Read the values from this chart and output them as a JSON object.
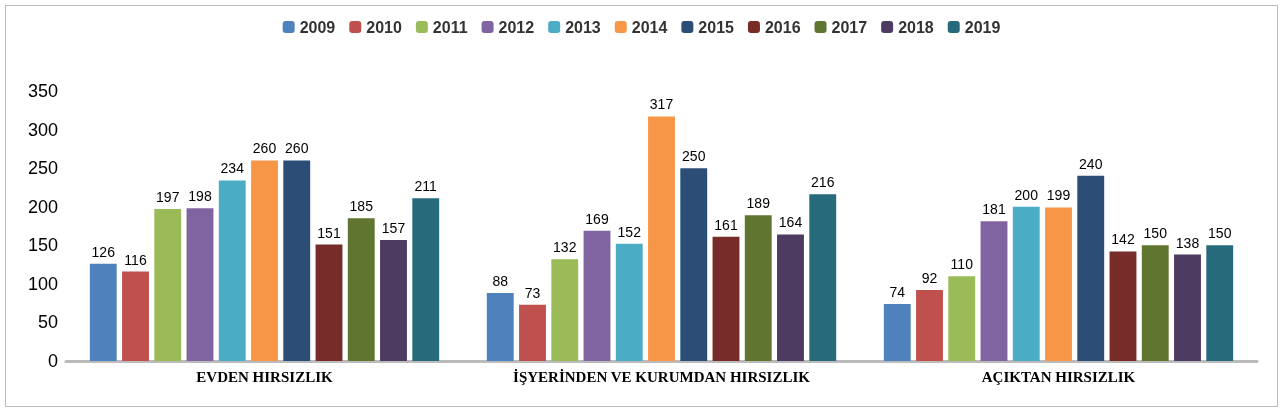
{
  "chart_data": {
    "type": "bar",
    "categories": [
      "EVDEN HIRSIZLIK",
      "İŞYERİNDEN VE KURUMDAN HIRSIZLIK",
      "AÇIKTAN HIRSIZLIK"
    ],
    "series": [
      {
        "name": "2009",
        "color": "#4f81bd",
        "values": [
          126,
          88,
          74
        ]
      },
      {
        "name": "2010",
        "color": "#c0504d",
        "values": [
          116,
          73,
          92
        ]
      },
      {
        "name": "2011",
        "color": "#9bbb59",
        "values": [
          197,
          132,
          110
        ]
      },
      {
        "name": "2012",
        "color": "#8064a2",
        "values": [
          198,
          169,
          181
        ]
      },
      {
        "name": "2013",
        "color": "#4bacc6",
        "values": [
          234,
          152,
          200
        ]
      },
      {
        "name": "2014",
        "color": "#f79646",
        "values": [
          260,
          317,
          199
        ]
      },
      {
        "name": "2015",
        "color": "#2c4d75",
        "values": [
          260,
          250,
          240
        ]
      },
      {
        "name": "2016",
        "color": "#772c2a",
        "values": [
          151,
          161,
          142
        ]
      },
      {
        "name": "2017",
        "color": "#5f7530",
        "values": [
          185,
          189,
          150
        ]
      },
      {
        "name": "2018",
        "color": "#4d3b62",
        "values": [
          157,
          164,
          138
        ]
      },
      {
        "name": "2019",
        "color": "#276a7c",
        "values": [
          211,
          216,
          150
        ]
      }
    ],
    "ylim": [
      0,
      350
    ],
    "yticks": [
      0,
      50,
      100,
      150,
      200,
      250,
      300,
      350
    ],
    "data_labels": true,
    "legend": "top",
    "grid": false
  }
}
